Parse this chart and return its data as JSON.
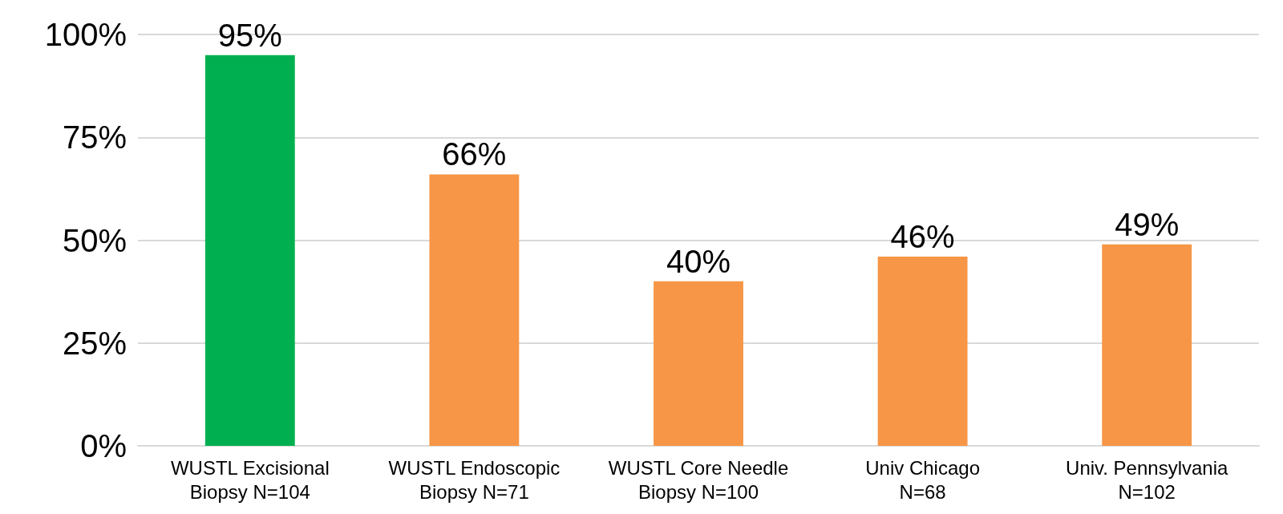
{
  "chart_data": {
    "type": "bar",
    "categories": [
      "WUSTL Excisional\nBiopsy N=104",
      "WUSTL Endoscopic\nBiopsy N=71",
      "WUSTL Core Needle\nBiopsy N=100",
      "Univ Chicago\nN=68",
      "Univ. Pennsylvania\nN=102"
    ],
    "values": [
      95,
      66,
      40,
      46,
      49
    ],
    "colors": [
      "#00b050",
      "#f79646",
      "#f79646",
      "#f79646",
      "#f79646"
    ],
    "value_labels": [
      "95%",
      "66%",
      "40%",
      "46%",
      "49%"
    ],
    "ylim": [
      0,
      100
    ],
    "yticks": [
      {
        "value": 0,
        "label": "0%"
      },
      {
        "value": 25,
        "label": "25%"
      },
      {
        "value": 50,
        "label": "50%"
      },
      {
        "value": 75,
        "label": "75%"
      },
      {
        "value": 100,
        "label": "100%"
      }
    ],
    "grid": "y"
  }
}
